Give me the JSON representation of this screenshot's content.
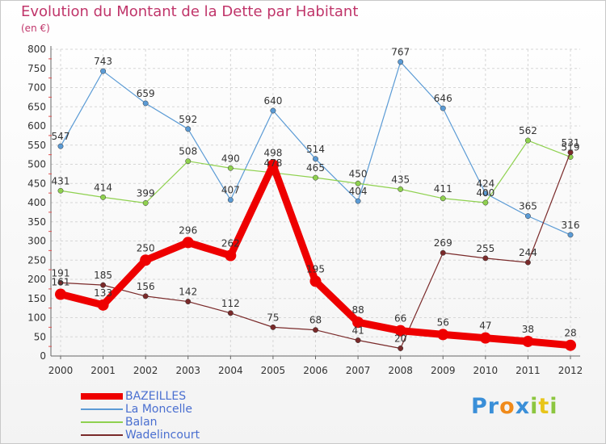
{
  "chart_data": {
    "type": "line",
    "title": "Evolution du Montant de la Dette par Habitant",
    "unit": "(en €)",
    "x": [
      "2000",
      "2001",
      "2002",
      "2003",
      "2004",
      "2005",
      "2006",
      "2007",
      "2008",
      "2009",
      "2010",
      "2011",
      "2012"
    ],
    "y_ticks": [
      "0",
      "50",
      "100",
      "150",
      "200",
      "250",
      "300",
      "350",
      "400",
      "450",
      "500",
      "550",
      "600",
      "650",
      "700",
      "750",
      "800"
    ],
    "ylim": [
      0,
      800
    ],
    "grid": true,
    "legend_position": "bottom-left",
    "series": [
      {
        "name": "BAZEILLES",
        "color": "#ee0000",
        "values": [
          161,
          133,
          250,
          296,
          262,
          498,
          195,
          88,
          66,
          56,
          47,
          38,
          28
        ]
      },
      {
        "name": "La Moncelle",
        "color": "#5b9bd5",
        "values": [
          547,
          743,
          659,
          592,
          407,
          640,
          514,
          404,
          767,
          646,
          424,
          365,
          316
        ]
      },
      {
        "name": "Balan",
        "color": "#8fd14f",
        "values": [
          431,
          414,
          399,
          508,
          490,
          478,
          465,
          450,
          435,
          411,
          400,
          562,
          519
        ]
      },
      {
        "name": "Wadelincourt",
        "color": "#7a2a2a",
        "values": [
          191,
          185,
          156,
          142,
          112,
          75,
          68,
          41,
          20,
          269,
          255,
          244,
          531
        ]
      }
    ]
  },
  "brand": {
    "letters": [
      "P",
      "r",
      "o",
      "x",
      "i",
      "t",
      "i"
    ],
    "colors": [
      "#3a8fd8",
      "#3a8fd8",
      "#f08a1a",
      "#3a8fd8",
      "#8cc63f",
      "#e8c51a",
      "#8cc63f"
    ]
  }
}
